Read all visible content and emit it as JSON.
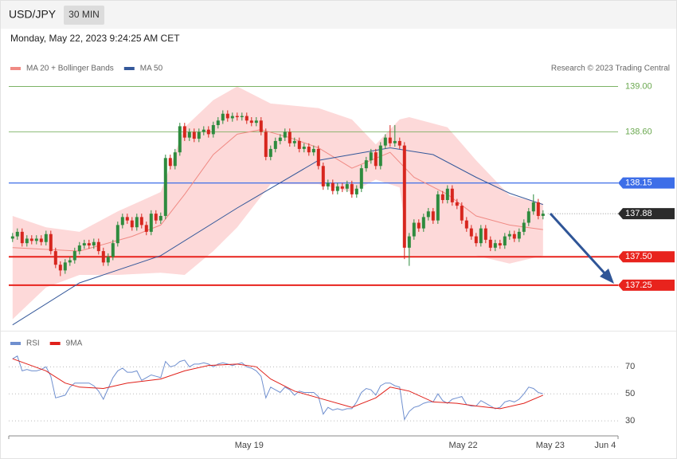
{
  "header": {
    "symbol": "USD/JPY",
    "timeframe": "30 MIN",
    "timestamp": "Monday, May 22, 2023 9:24:25 AM CET",
    "credit": "Research © 2023 Trading Central"
  },
  "chart_data": [
    {
      "type": "candlestick",
      "xlim": [
        -0.8,
        126.7
      ],
      "ylim": [
        136.87,
        139.06
      ],
      "up_color": "#2e8b3e",
      "down_color": "#d7261e",
      "ohlc": {
        "open": [
          137.66,
          137.68,
          137.72,
          137.62,
          137.66,
          137.64,
          137.66,
          137.63,
          137.7,
          137.55,
          137.43,
          137.38,
          137.45,
          137.47,
          137.55,
          137.6,
          137.62,
          137.6,
          137.63,
          137.55,
          137.45,
          137.5,
          137.62,
          137.78,
          137.85,
          137.82,
          137.76,
          137.85,
          137.78,
          137.72,
          137.88,
          137.82,
          137.86,
          138.37,
          138.3,
          138.42,
          138.65,
          138.55,
          138.6,
          138.54,
          138.6,
          138.62,
          138.58,
          138.66,
          138.7,
          138.76,
          138.72,
          138.74,
          138.73,
          138.74,
          138.7,
          138.68,
          138.7,
          138.6,
          138.38,
          138.45,
          138.52,
          138.55,
          138.6,
          138.5,
          138.52,
          138.45,
          138.47,
          138.42,
          138.45,
          138.3,
          138.12,
          138.15,
          138.08,
          138.12,
          138.1,
          138.14,
          138.05,
          138.1,
          138.28,
          138.35,
          138.42,
          138.3,
          138.48,
          138.55,
          138.5,
          138.52,
          138.48,
          137.58,
          137.68,
          137.8,
          137.75,
          137.85,
          137.9,
          137.82,
          138.05,
          138.0,
          138.1,
          137.98,
          137.95,
          137.82,
          137.75,
          137.68,
          137.62,
          137.75,
          137.65,
          137.58,
          137.62,
          137.6,
          137.68,
          137.7,
          137.66,
          137.72,
          137.8,
          137.9,
          137.98,
          137.86
        ],
        "high": [
          137.71,
          137.75,
          137.75,
          137.69,
          137.69,
          137.69,
          137.69,
          137.73,
          137.73,
          137.58,
          137.46,
          137.48,
          137.5,
          137.58,
          137.63,
          137.65,
          137.65,
          137.66,
          137.66,
          137.58,
          137.53,
          137.65,
          137.81,
          137.88,
          137.88,
          137.85,
          137.88,
          137.88,
          137.81,
          137.91,
          137.91,
          137.89,
          138.4,
          138.4,
          138.45,
          138.68,
          138.68,
          138.63,
          138.63,
          138.63,
          138.65,
          138.65,
          138.69,
          138.73,
          138.79,
          138.79,
          138.77,
          138.77,
          138.77,
          138.77,
          138.73,
          138.73,
          138.73,
          138.63,
          138.48,
          138.55,
          138.58,
          138.63,
          138.63,
          138.55,
          138.55,
          138.5,
          138.5,
          138.48,
          138.48,
          138.33,
          138.18,
          138.18,
          138.15,
          138.15,
          138.17,
          138.17,
          138.13,
          138.31,
          138.38,
          138.45,
          138.45,
          138.51,
          138.58,
          138.66,
          138.66,
          138.55,
          138.51,
          137.71,
          137.83,
          137.83,
          137.88,
          137.93,
          137.93,
          138.08,
          138.08,
          138.13,
          138.13,
          138.01,
          137.98,
          137.85,
          137.78,
          137.71,
          137.78,
          137.78,
          137.68,
          137.65,
          137.65,
          137.71,
          137.73,
          137.73,
          137.75,
          137.83,
          137.93,
          138.05,
          138.01,
          137.91
        ],
        "low": [
          137.63,
          137.65,
          137.59,
          137.59,
          137.61,
          137.61,
          137.6,
          137.6,
          137.52,
          137.4,
          137.33,
          137.35,
          137.42,
          137.44,
          137.52,
          137.57,
          137.57,
          137.57,
          137.52,
          137.42,
          137.42,
          137.47,
          137.59,
          137.75,
          137.79,
          137.73,
          137.73,
          137.75,
          137.69,
          137.69,
          137.79,
          137.79,
          137.83,
          138.27,
          138.27,
          138.39,
          138.52,
          138.52,
          138.51,
          138.51,
          138.57,
          138.55,
          138.55,
          138.63,
          138.67,
          138.69,
          138.69,
          138.7,
          138.7,
          138.67,
          138.65,
          138.65,
          138.57,
          138.35,
          138.35,
          138.42,
          138.49,
          138.52,
          138.47,
          138.47,
          138.42,
          138.42,
          138.39,
          138.39,
          138.27,
          138.09,
          138.09,
          138.05,
          138.05,
          138.07,
          138.07,
          138.02,
          138.02,
          138.07,
          138.25,
          138.32,
          138.27,
          138.27,
          138.45,
          138.47,
          138.47,
          138.45,
          137.48,
          137.42,
          137.65,
          137.72,
          137.72,
          137.82,
          137.79,
          137.79,
          137.97,
          137.97,
          137.95,
          137.92,
          137.79,
          137.72,
          137.65,
          137.59,
          137.59,
          137.62,
          137.55,
          137.55,
          137.57,
          137.57,
          137.65,
          137.63,
          137.63,
          137.69,
          137.77,
          137.87,
          137.83,
          137.83
        ],
        "close": [
          137.68,
          137.72,
          137.62,
          137.66,
          137.64,
          137.66,
          137.63,
          137.7,
          137.55,
          137.43,
          137.38,
          137.45,
          137.47,
          137.55,
          137.6,
          137.62,
          137.6,
          137.63,
          137.55,
          137.45,
          137.5,
          137.62,
          137.78,
          137.85,
          137.82,
          137.76,
          137.85,
          137.78,
          137.72,
          137.88,
          137.82,
          137.86,
          138.37,
          138.3,
          138.42,
          138.65,
          138.55,
          138.6,
          138.54,
          138.6,
          138.62,
          138.58,
          138.66,
          138.7,
          138.76,
          138.72,
          138.74,
          138.73,
          138.74,
          138.7,
          138.68,
          138.7,
          138.6,
          138.38,
          138.45,
          138.52,
          138.55,
          138.6,
          138.5,
          138.52,
          138.45,
          138.47,
          138.42,
          138.45,
          138.3,
          138.12,
          138.15,
          138.08,
          138.12,
          138.1,
          138.14,
          138.05,
          138.1,
          138.28,
          138.35,
          138.42,
          138.3,
          138.48,
          138.55,
          138.5,
          138.52,
          138.48,
          137.58,
          137.68,
          137.8,
          137.75,
          137.85,
          137.9,
          137.82,
          138.05,
          138.0,
          138.1,
          137.98,
          137.95,
          137.82,
          137.75,
          137.68,
          137.62,
          137.75,
          137.65,
          137.58,
          137.62,
          137.6,
          137.68,
          137.7,
          137.66,
          137.72,
          137.8,
          137.9,
          137.98,
          137.86,
          137.88
        ]
      },
      "band": {
        "color": "#fdd9d9",
        "x": [
          0,
          7,
          14,
          22,
          31,
          36,
          42,
          47,
          54,
          64,
          71,
          76,
          81,
          83,
          91,
          97,
          104,
          111
        ],
        "upper": [
          137.86,
          137.76,
          137.72,
          137.9,
          138.07,
          138.64,
          138.88,
          139.0,
          138.85,
          138.81,
          138.71,
          138.49,
          138.71,
          138.73,
          138.64,
          138.35,
          138.04,
          137.97
        ],
        "lower": [
          136.95,
          137.23,
          137.34,
          137.34,
          137.36,
          137.34,
          137.55,
          137.76,
          138.14,
          138.14,
          138.07,
          138.18,
          138.11,
          137.51,
          137.51,
          137.51,
          137.44,
          137.51
        ]
      },
      "series": [
        {
          "name": "MA 20 + Bollinger Bands",
          "color": "#f08a84",
          "x": [
            0,
            14,
            25,
            31,
            36,
            42,
            47,
            52,
            58,
            64,
            71,
            79,
            84,
            91,
            97,
            104,
            111
          ],
          "values": [
            137.58,
            137.55,
            137.68,
            137.78,
            138.05,
            138.4,
            138.58,
            138.62,
            138.55,
            138.46,
            138.28,
            138.42,
            138.2,
            138.05,
            137.86,
            137.78,
            137.74
          ]
        },
        {
          "name": "MA 50",
          "color": "#34589a",
          "x": [
            0,
            14,
            31,
            47,
            64,
            79,
            88,
            97,
            104,
            111
          ],
          "values": [
            136.9,
            137.27,
            137.51,
            137.93,
            138.35,
            138.46,
            138.4,
            138.2,
            138.06,
            137.96
          ]
        }
      ],
      "levels": [
        {
          "value": 139,
          "label": "139.00",
          "color": "#6aa84f",
          "style": "plain",
          "line_width": 0.8
        },
        {
          "value": 138.6,
          "label": "138.60",
          "color": "#6aa84f",
          "style": "plain",
          "line_width": 0.8
        },
        {
          "value": 138.15,
          "label": "138.15",
          "color": "#3d6ee8",
          "style": "tag",
          "line_width": 1.2
        },
        {
          "value": 137.88,
          "label": "137.88",
          "color": "#2b2b2b",
          "style": "last",
          "line_width": 0.8
        },
        {
          "value": 137.5,
          "label": "137.50",
          "color": "#e8231d",
          "style": "tag",
          "line_width": 2
        },
        {
          "value": 137.25,
          "label": "137.25",
          "color": "#e8231d",
          "style": "tag",
          "line_width": 2
        }
      ]
    },
    {
      "type": "line",
      "xlim": [
        -0.8,
        126.7
      ],
      "ylim": [
        23,
        82
      ],
      "yticks": [
        70,
        50,
        30
      ],
      "xticks": [
        {
          "value": 49.5,
          "label": "May 19"
        },
        {
          "value": 94.3,
          "label": "May 22"
        },
        {
          "value": 112.5,
          "label": "May 23"
        },
        {
          "value": 124,
          "label": "Jun 4"
        }
      ],
      "series": [
        {
          "name": "RSI",
          "color": "#6f8fcf",
          "values": [
            76,
            78,
            67,
            68,
            67,
            67,
            68,
            70,
            63,
            47,
            48,
            49,
            55,
            58,
            58,
            58,
            58,
            56,
            52,
            46,
            54,
            62,
            67,
            69,
            66,
            66,
            67,
            60,
            62,
            64,
            63,
            62,
            74,
            70,
            71,
            74,
            75,
            70,
            72,
            72,
            73,
            72,
            70,
            72,
            73,
            72,
            71,
            72,
            73,
            70,
            69,
            67,
            63,
            47,
            55,
            53,
            51,
            55,
            53,
            49,
            52,
            51,
            51,
            51,
            48,
            35,
            40,
            38,
            39,
            38,
            39,
            39,
            44,
            51,
            54,
            53,
            49,
            56,
            58,
            58,
            56,
            55,
            31,
            37,
            40,
            41,
            43,
            44,
            44,
            50,
            45,
            43,
            46,
            47,
            48,
            42,
            41,
            41,
            45,
            43,
            41,
            39,
            40,
            44,
            45,
            44,
            46,
            50,
            55,
            54,
            51,
            50
          ]
        },
        {
          "name": "9MA",
          "color": "#e0201a",
          "x": [
            0,
            7,
            11,
            14,
            19,
            24,
            31,
            36,
            41,
            47,
            51,
            54,
            59,
            64,
            71,
            76,
            79,
            83,
            88,
            93,
            97,
            102,
            107,
            111
          ],
          "values": [
            76,
            67,
            58,
            55,
            54,
            58,
            61,
            67,
            71,
            72,
            70,
            61,
            52,
            47,
            40,
            47,
            55,
            52,
            44,
            43,
            41,
            39,
            43,
            49
          ]
        }
      ]
    }
  ]
}
